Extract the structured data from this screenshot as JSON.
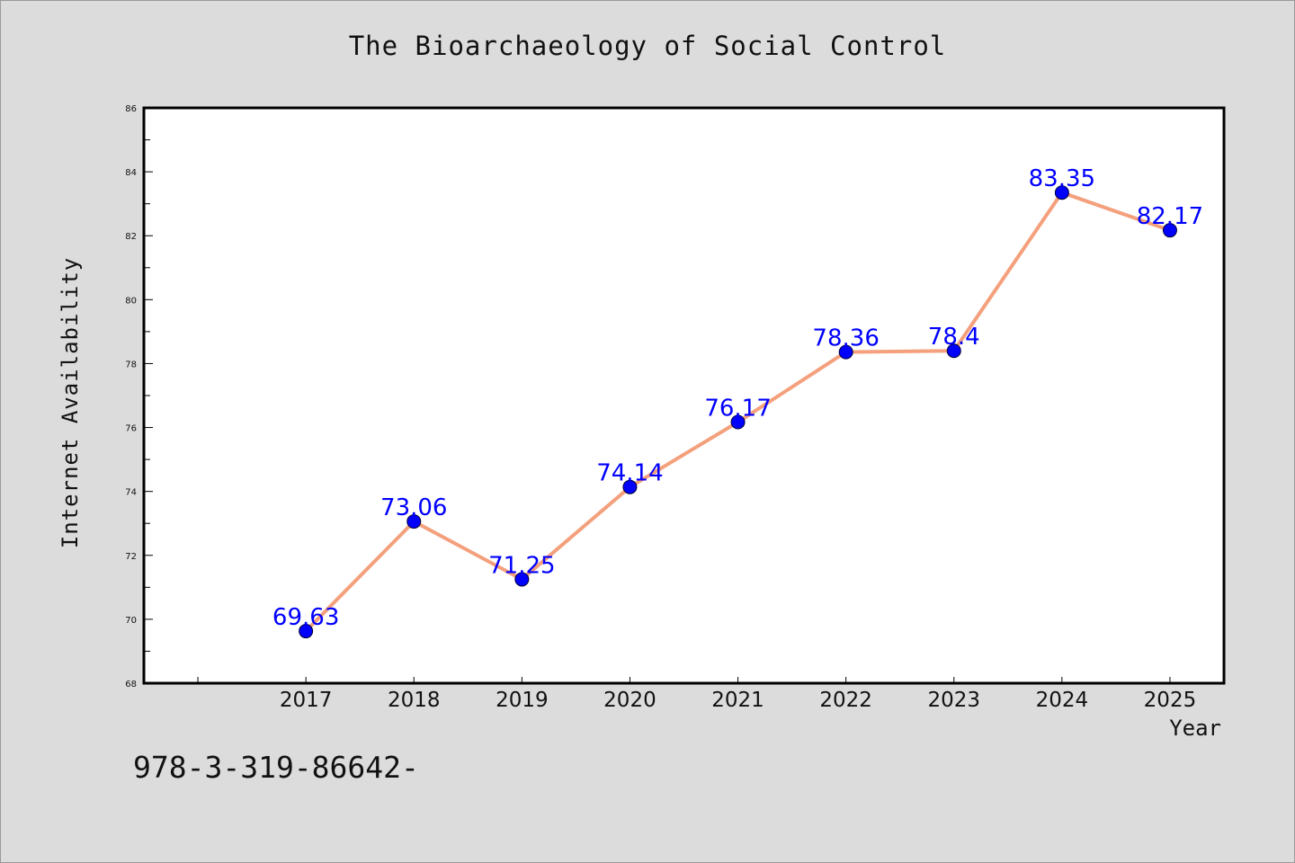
{
  "chart_data": {
    "type": "line",
    "title": "The Bioarchaeology of Social Control",
    "xlabel": "Year",
    "ylabel": "Internet Availability",
    "x": [
      2017,
      2018,
      2019,
      2020,
      2021,
      2022,
      2023,
      2024,
      2025
    ],
    "series": [
      {
        "values": [
          69.63,
          73.06,
          71.25,
          74.14,
          76.17,
          78.36,
          78.4,
          83.35,
          82.17
        ],
        "labels": [
          "69.63",
          "73.06",
          "71.25",
          "74.14",
          "76.17",
          "78.36",
          "78.4",
          "83.35",
          "82.17"
        ]
      }
    ],
    "ylim": [
      68,
      86
    ],
    "xlim": [
      2015.5,
      2025.5
    ],
    "y_ticks": [
      "68",
      "70",
      "72",
      "74",
      "76",
      "78",
      "80",
      "82",
      "84",
      "86"
    ],
    "x_ticks": [
      "2017",
      "2018",
      "2019",
      "2020",
      "2021",
      "2022",
      "2023",
      "2024",
      "2025"
    ],
    "grid": false,
    "legend": "none",
    "colors": {
      "line": "#f4a07c",
      "marker": "#0000ff",
      "label": "#0000ff",
      "background": "#dcdcdc",
      "plot_background": "#ffffff"
    }
  },
  "footer": {
    "note": "978-3-319-86642-"
  }
}
